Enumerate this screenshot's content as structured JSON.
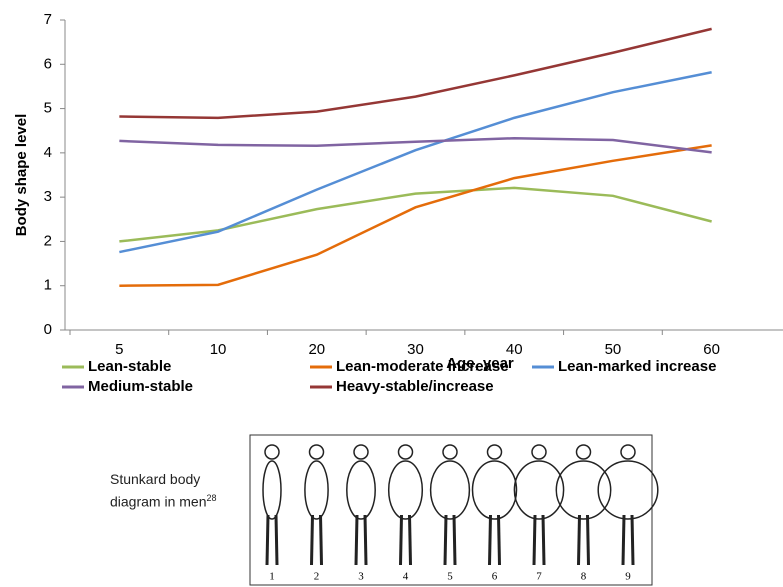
{
  "chart_data": {
    "type": "line",
    "x_label": "Age, year",
    "y_label": "Body shape level",
    "categories": [
      "5",
      "10",
      "20",
      "30",
      "40",
      "50",
      "60"
    ],
    "series": [
      {
        "name": "Lean-stable",
        "color": "#9bbb59",
        "values": [
          2.0,
          2.25,
          2.73,
          3.08,
          3.21,
          3.03,
          2.45
        ]
      },
      {
        "name": "Lean-moderate increase",
        "color": "#e46c0a",
        "values": [
          1.0,
          1.02,
          1.7,
          2.77,
          3.43,
          3.82,
          4.17
        ]
      },
      {
        "name": "Lean-marked increase",
        "color": "#558ed5",
        "values": [
          1.76,
          2.22,
          3.17,
          4.06,
          4.79,
          5.37,
          5.82
        ]
      },
      {
        "name": "Medium-stable",
        "color": "#8064a2",
        "values": [
          4.27,
          4.18,
          4.16,
          4.25,
          4.33,
          4.29,
          4.01
        ]
      },
      {
        "name": "Heavy-stable/increase",
        "color": "#953735",
        "values": [
          4.82,
          4.79,
          4.93,
          5.27,
          5.75,
          6.26,
          6.8
        ]
      }
    ],
    "ylim": [
      0,
      7
    ],
    "yticks": [
      0,
      1,
      2,
      3,
      4,
      5,
      6,
      7
    ],
    "grid": false
  },
  "figure": {
    "caption": "Stunkard body diagram in men",
    "reference": "28",
    "labels": [
      "1",
      "2",
      "3",
      "4",
      "5",
      "6",
      "7",
      "8",
      "9"
    ]
  }
}
